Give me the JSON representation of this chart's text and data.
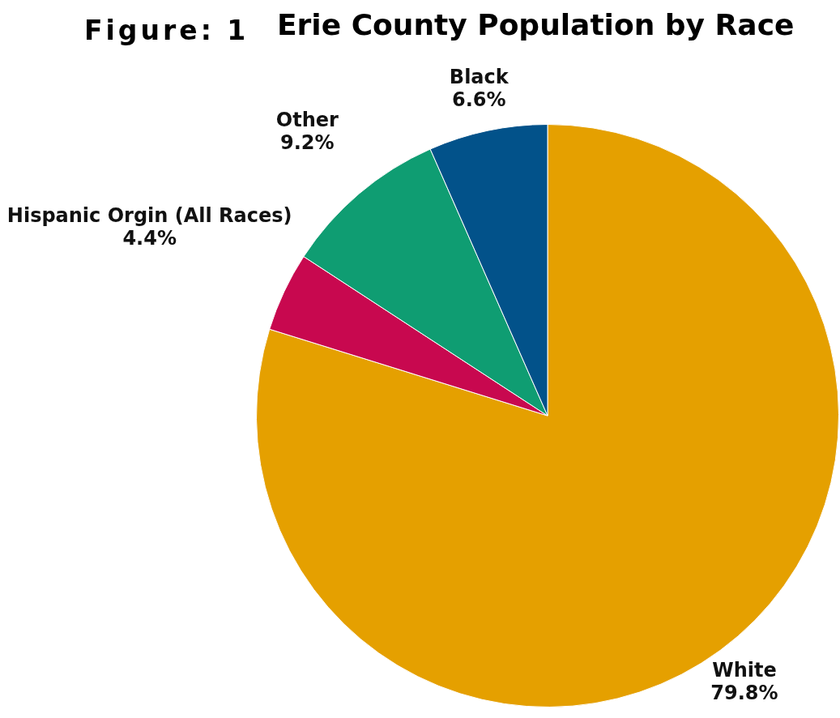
{
  "chart_data": {
    "type": "pie",
    "title": "Erie County Population by Race",
    "annotations": [
      "Figure: 1"
    ],
    "categories": [
      "White",
      "Hispanic Orgin (All Races)",
      "Other",
      "Black"
    ],
    "values": [
      79.8,
      4.4,
      9.2,
      6.6
    ],
    "value_labels": [
      "79.8%",
      "4.4%",
      "9.2%",
      "6.6%"
    ],
    "colors": [
      "#e5a000",
      "#c8084f",
      "#0f9d72",
      "#02528a"
    ],
    "legend": false
  }
}
